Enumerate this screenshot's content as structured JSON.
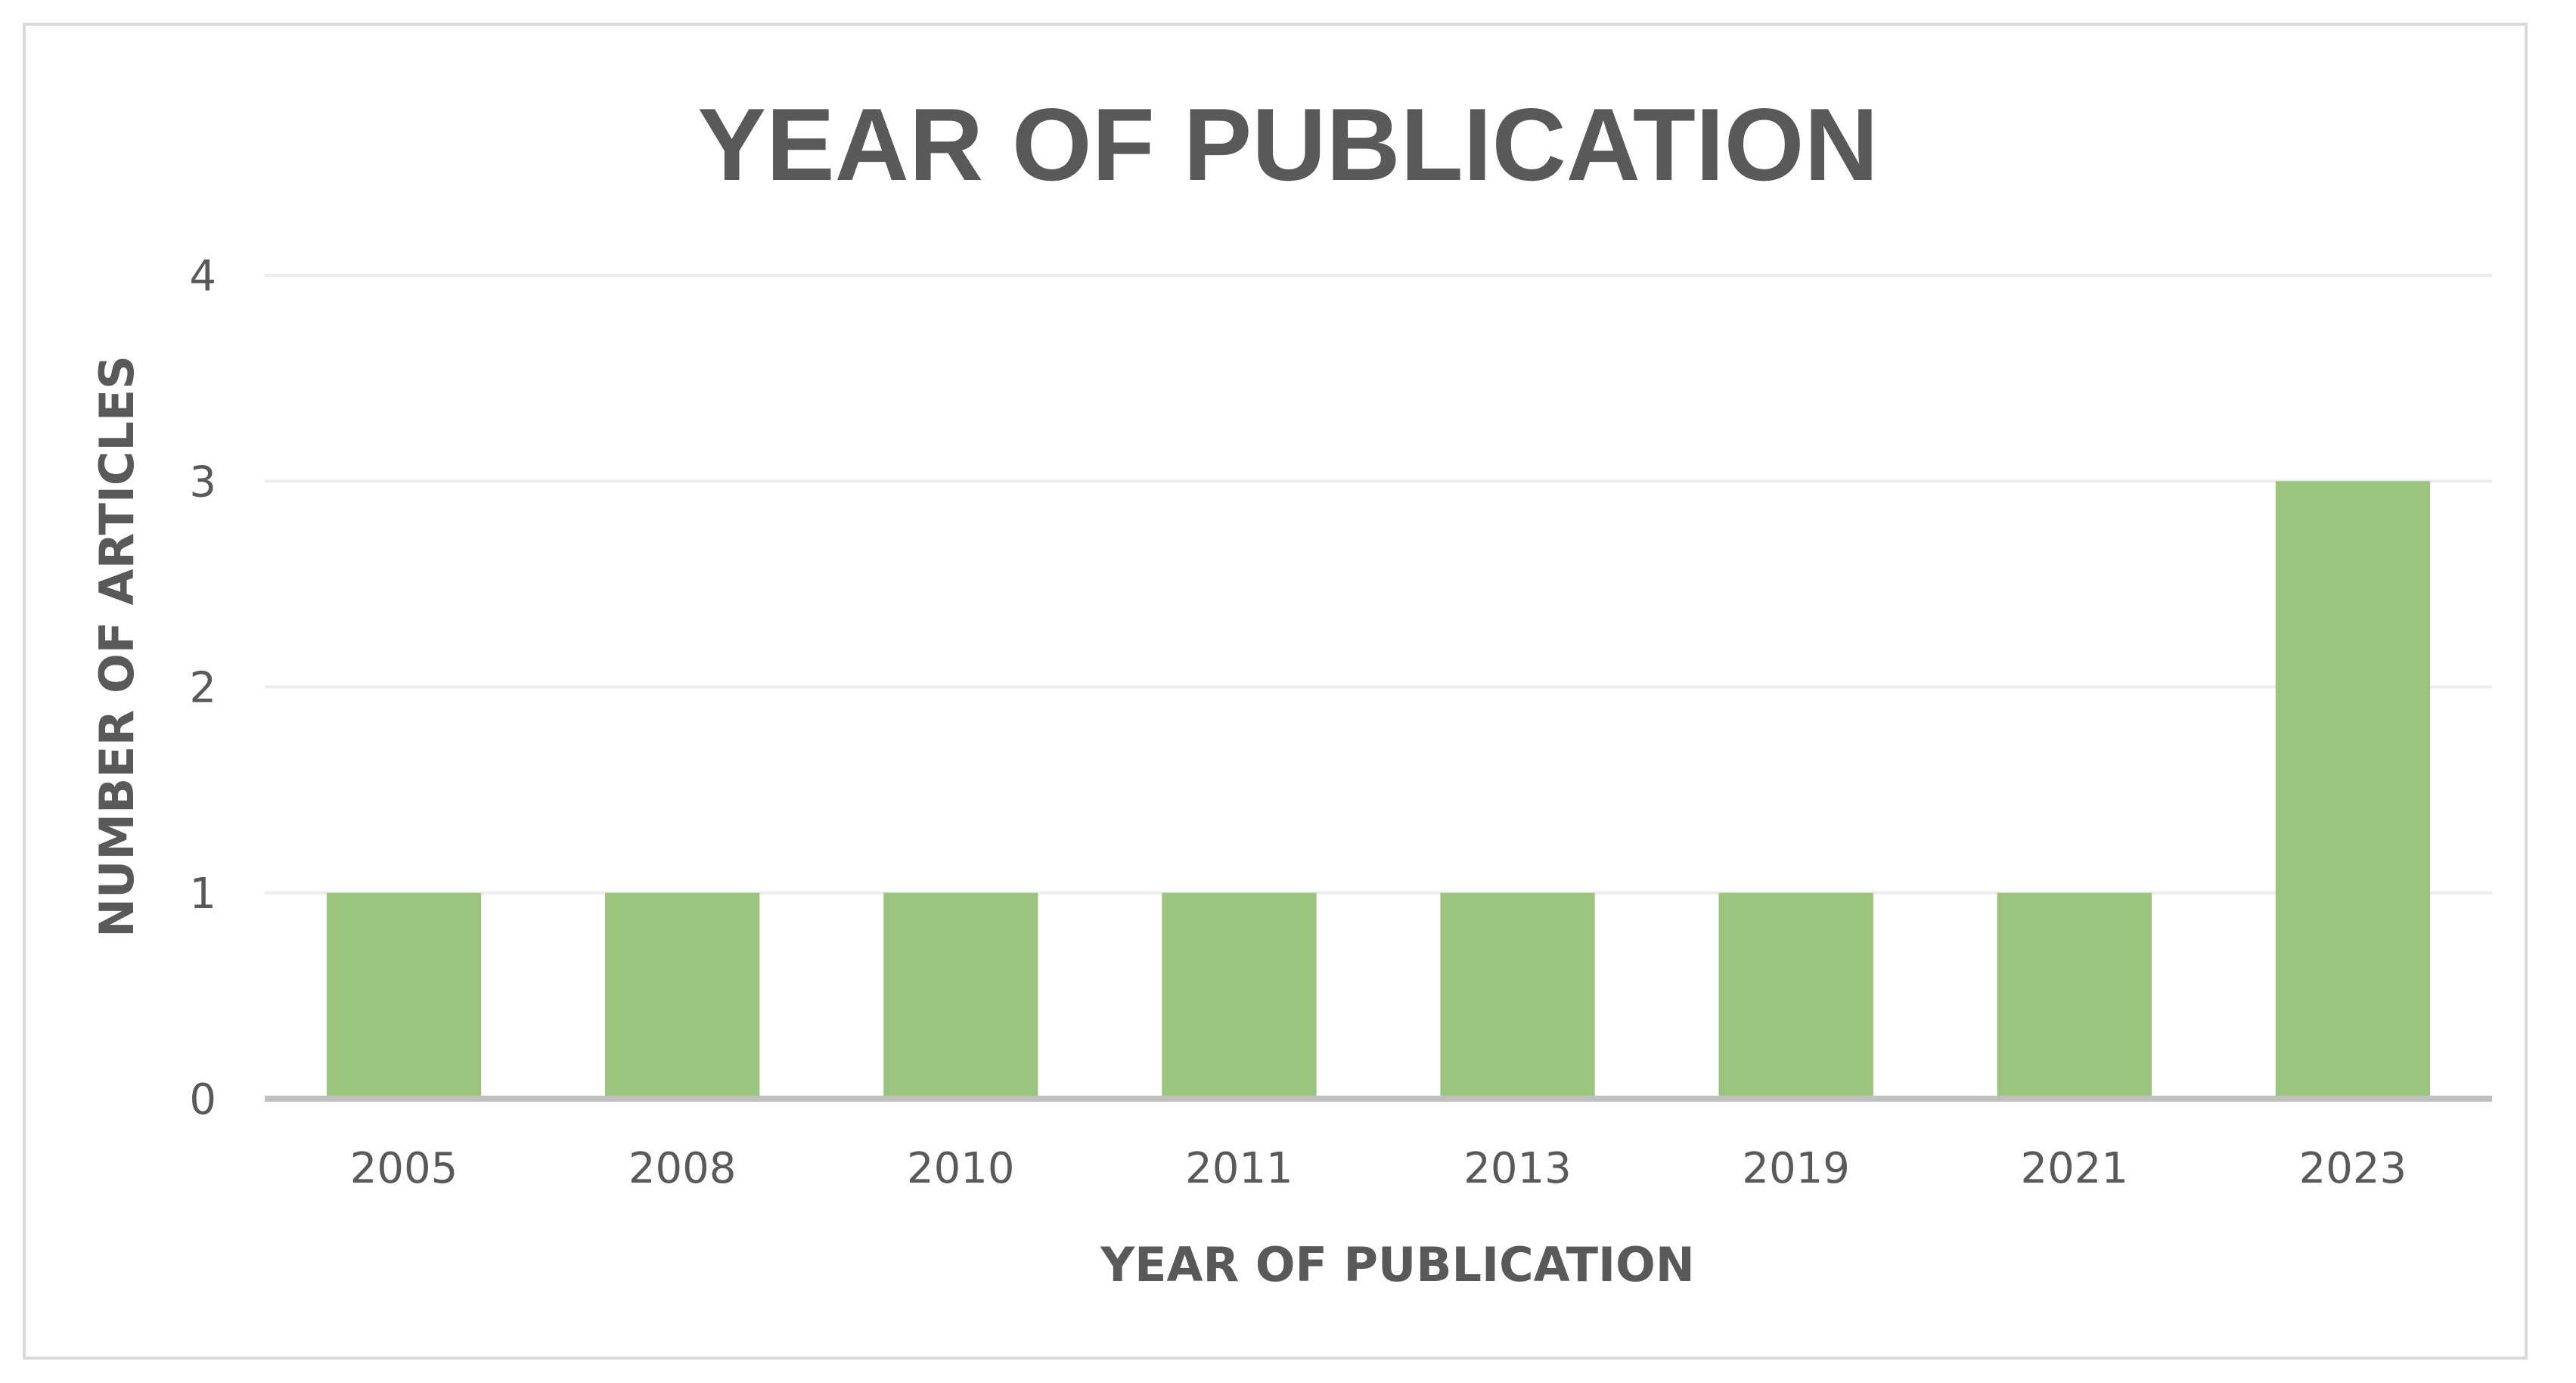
{
  "chart_data": {
    "type": "bar",
    "title": "YEAR OF PUBLICATION",
    "xlabel": "YEAR OF PUBLICATION",
    "ylabel": "NUMBER OF ARTICLES",
    "categories": [
      "2005",
      "2008",
      "2010",
      "2011",
      "2013",
      "2019",
      "2021",
      "2023"
    ],
    "values": [
      1,
      1,
      1,
      1,
      1,
      1,
      1,
      3
    ],
    "ylim": [
      0,
      4
    ],
    "yticks": [
      0,
      1,
      2,
      3,
      4
    ],
    "grid": true,
    "legend": "none",
    "bar_color": "#9bc57f"
  }
}
